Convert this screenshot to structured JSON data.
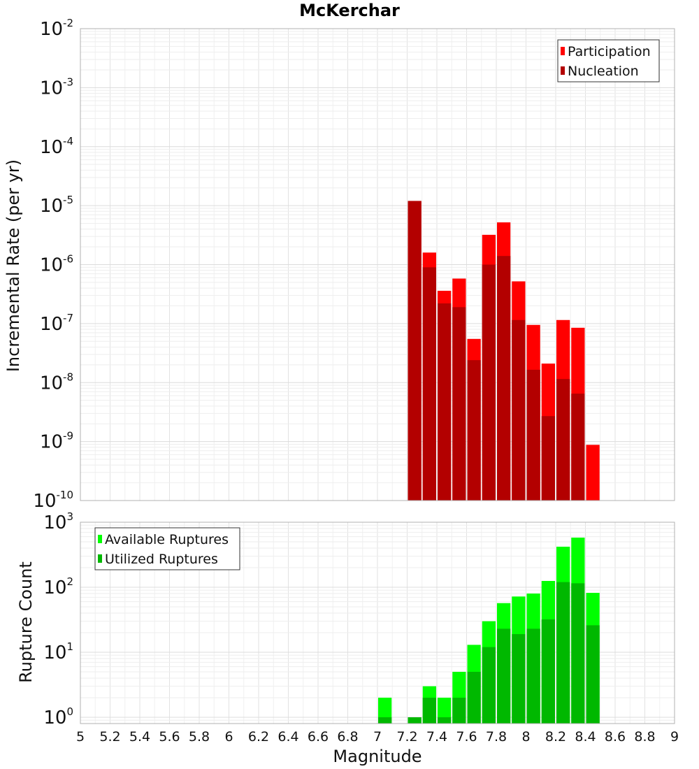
{
  "chart_data": [
    {
      "type": "bar",
      "title": "McKerchar",
      "ylabel": "Incremental Rate (per yr)",
      "yscale": "log",
      "ylim": [
        1e-10,
        0.01
      ],
      "xlim": [
        5,
        9
      ],
      "ytick_exponents": [
        -10,
        -9,
        -8,
        -7,
        -6,
        -5,
        -4,
        -3,
        -2
      ],
      "legend": "top-right",
      "x": [
        7.25,
        7.35,
        7.45,
        7.55,
        7.65,
        7.75,
        7.85,
        7.95,
        8.05,
        8.15,
        8.25,
        8.35,
        8.45
      ],
      "series": [
        {
          "name": "Participation",
          "color": "#ff0000",
          "values": [
            1.2e-05,
            1.6e-06,
            3.6e-07,
            5.8e-07,
            5.5e-08,
            3.2e-06,
            5.2e-06,
            5.2e-07,
            9.5e-08,
            2.1e-08,
            1.15e-07,
            8.5e-08,
            8.8e-10
          ]
        },
        {
          "name": "Nucleation",
          "color": "#b30000",
          "values": [
            1.2e-05,
            9e-07,
            2.2e-07,
            1.9e-07,
            2.4e-08,
            1e-06,
            1.4e-06,
            1.15e-07,
            1.65e-08,
            2.7e-09,
            1.15e-08,
            6.5e-09,
            1e-10
          ]
        }
      ]
    },
    {
      "type": "bar",
      "xlabel": "Magnitude",
      "ylabel": "Rupture Count",
      "yscale": "log",
      "ylim": [
        0.8,
        1000
      ],
      "xlim": [
        5,
        9
      ],
      "ytick_exponents": [
        0,
        1,
        2,
        3
      ],
      "legend": "top-left",
      "xticks": [
        "5",
        "5.2",
        "5.4",
        "5.6",
        "5.8",
        "6",
        "6.2",
        "6.4",
        "6.6",
        "6.8",
        "7",
        "7.2",
        "7.4",
        "7.6",
        "7.8",
        "8",
        "8.2",
        "8.4",
        "8.6",
        "8.8",
        "9"
      ],
      "x": [
        7.05,
        7.25,
        7.35,
        7.45,
        7.55,
        7.65,
        7.75,
        7.85,
        7.95,
        8.05,
        8.15,
        8.25,
        8.35,
        8.45
      ],
      "series": [
        {
          "name": "Available Ruptures",
          "color": "#00ff00",
          "values": [
            2,
            1,
            3,
            2,
            5,
            13,
            30,
            57,
            72,
            80,
            125,
            420,
            580,
            82
          ]
        },
        {
          "name": "Utilized Ruptures",
          "color": "#00b800",
          "values": [
            1,
            1,
            2,
            1,
            2,
            5,
            12,
            23,
            19,
            23,
            32,
            120,
            115,
            26
          ]
        }
      ]
    }
  ]
}
